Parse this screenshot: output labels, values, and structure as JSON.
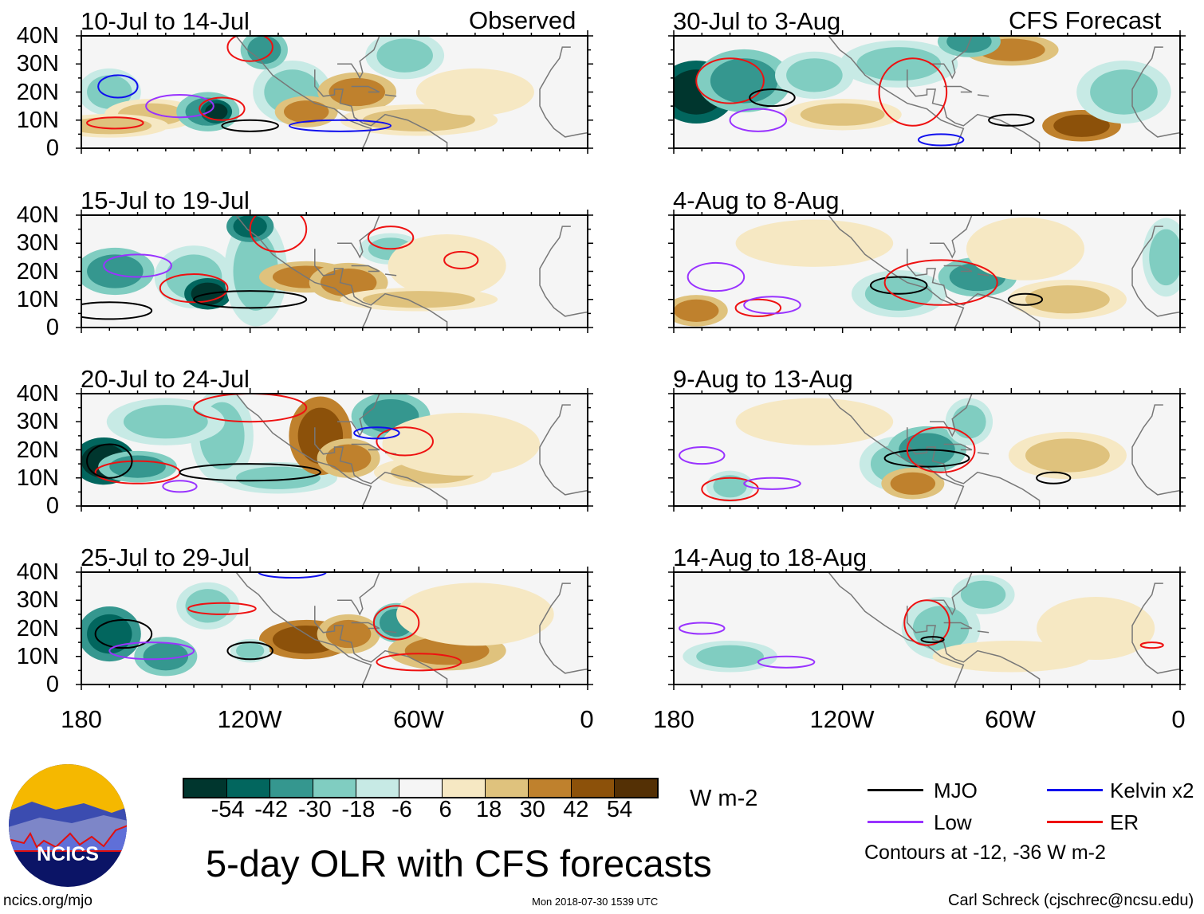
{
  "figure": {
    "title": "5-day OLR with CFS forecasts",
    "observed_label": "Observed",
    "forecast_label": "CFS Forecast",
    "units": "W m-2",
    "website": "ncics.org/mjo",
    "timestamp": "Mon 2018-07-30 1539 UTC",
    "credit": "Carl Schreck (cjschrec@ncsu.edu)",
    "logo_text": "NCICS"
  },
  "chart_data": {
    "type": "heatmap",
    "title": "5-day OLR with CFS forecasts",
    "panels": [
      {
        "title": "10-Jul to 14-Jul",
        "kind": "Observed"
      },
      {
        "title": "15-Jul to 19-Jul",
        "kind": "Observed"
      },
      {
        "title": "20-Jul to 24-Jul",
        "kind": "Observed"
      },
      {
        "title": "25-Jul to 29-Jul",
        "kind": "Observed"
      },
      {
        "title": "30-Jul to 3-Aug",
        "kind": "CFS Forecast"
      },
      {
        "title": "4-Aug to 8-Aug",
        "kind": "CFS Forecast"
      },
      {
        "title": "9-Aug to 13-Aug",
        "kind": "CFS Forecast"
      },
      {
        "title": "14-Aug to 18-Aug",
        "kind": "CFS Forecast"
      }
    ],
    "y_ticks": [
      "40N",
      "30N",
      "20N",
      "10N",
      "0"
    ],
    "x_ticks": [
      "180",
      "120W",
      "60W",
      "0"
    ],
    "xlim": [
      -180,
      0
    ],
    "ylim": [
      0,
      40
    ],
    "colorbar": {
      "levels": [
        "-54",
        "-42",
        "-30",
        "-18",
        "-6",
        "6",
        "18",
        "30",
        "42",
        "54"
      ],
      "colors": [
        "#00362e",
        "#02665e",
        "#35978f",
        "#80cdc1",
        "#c7eae5",
        "#f5f5f5",
        "#f6e8c3",
        "#dfc27d",
        "#bf812d",
        "#8c510a",
        "#543005"
      ],
      "units": "W m-2"
    },
    "legend": [
      {
        "label": "MJO",
        "color": "#000000"
      },
      {
        "label": "Kelvin x2",
        "color": "#1010ee"
      },
      {
        "label": "Low",
        "color": "#9933ff"
      },
      {
        "label": "ER",
        "color": "#ee1111"
      }
    ],
    "contour_note": "Contours at -12, -36 W m-2"
  }
}
